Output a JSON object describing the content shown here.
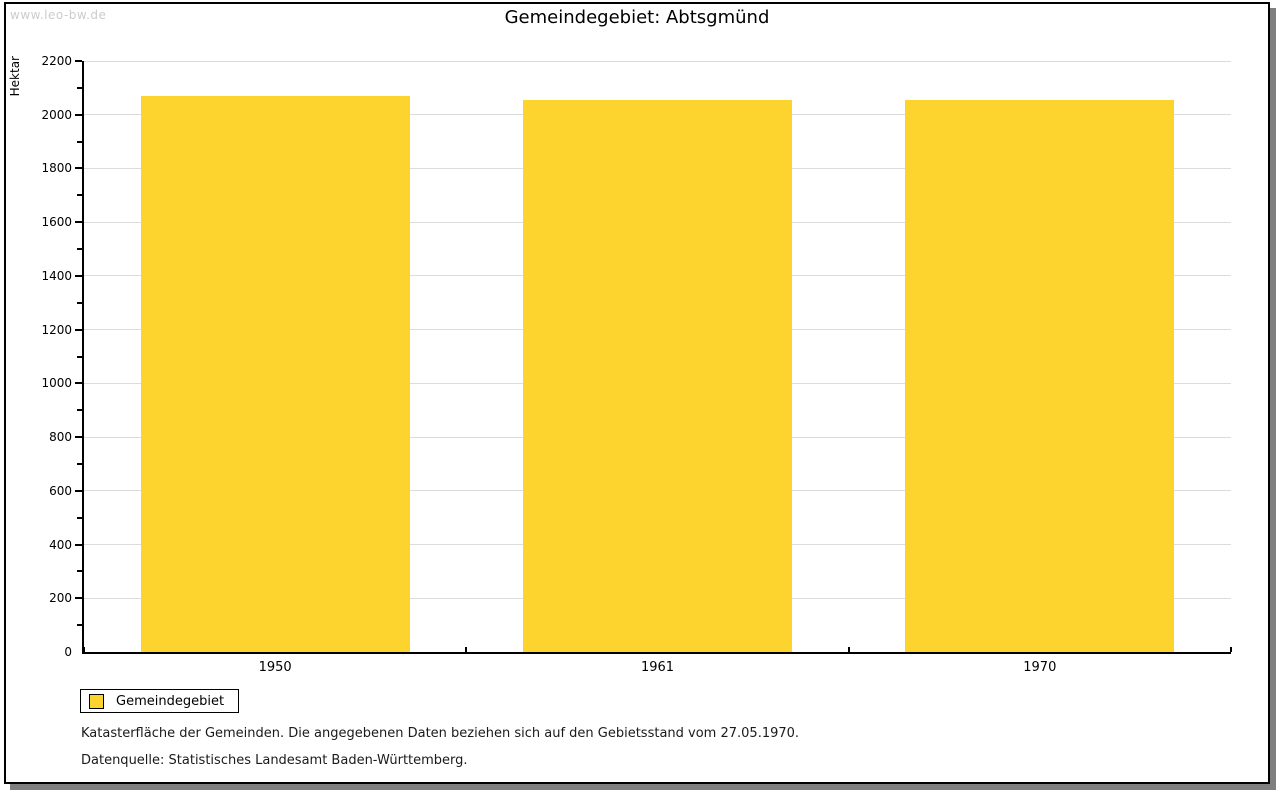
{
  "watermark": "www.leo-bw.de",
  "title": "Gemeindegebiet: Abtsgmünd",
  "chart_data": {
    "type": "bar",
    "categories": [
      "1950",
      "1961",
      "1970"
    ],
    "series": [
      {
        "name": "Gemeindegebiet",
        "values": [
          2068,
          2056,
          2055
        ]
      }
    ],
    "xlabel": "",
    "ylabel": "Hektar",
    "ylim": [
      0,
      2200
    ],
    "ytick_step": 200,
    "yminor_step": 100,
    "grid": true,
    "bar_color": "#FCD42D",
    "legend_position": "bottom-left"
  },
  "legend": {
    "items": [
      {
        "label": "Gemeindegebiet",
        "color": "#FCD42D"
      }
    ]
  },
  "footer": {
    "line1": "Katasterfläche der Gemeinden. Die angegebenen Daten beziehen sich auf den Gebietsstand vom 27.05.1970.",
    "line2": "Datenquelle: Statistisches Landesamt Baden-Württemberg."
  }
}
